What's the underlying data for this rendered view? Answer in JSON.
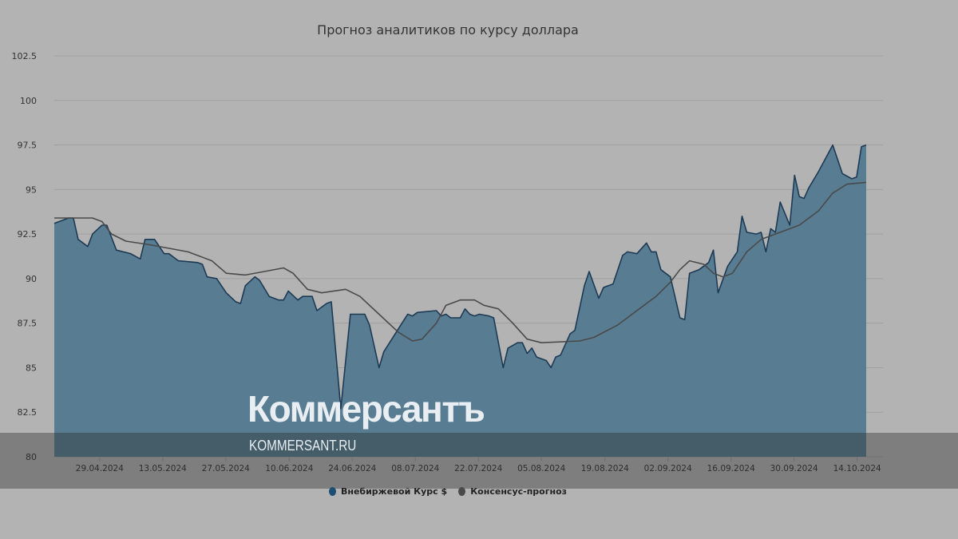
{
  "chart_data": {
    "type": "area",
    "title": "Прогноз аналитиков по курсу доллара",
    "xlabel": "",
    "ylabel": "",
    "ylim": [
      80,
      102.5
    ],
    "xlim": [
      0,
      170
    ],
    "y_ticks": [
      "80",
      "82.5",
      "85",
      "87.5",
      "90",
      "92.5",
      "95",
      "97.5",
      "100",
      "102.5"
    ],
    "x_ticks": [
      {
        "label": "29.04.2024",
        "day": 9.5
      },
      {
        "label": "13.05.2024",
        "day": 22.7
      },
      {
        "label": "27.05.2024",
        "day": 35.9
      },
      {
        "label": "10.06.2024",
        "day": 49.2
      },
      {
        "label": "24.06.2024",
        "day": 62.4
      },
      {
        "label": "08.07.2024",
        "day": 75.6
      },
      {
        "label": "22.07.2024",
        "day": 88.8
      },
      {
        "label": "05.08.2024",
        "day": 102.0
      },
      {
        "label": "19.08.2024",
        "day": 115.3
      },
      {
        "label": "02.09.2024",
        "day": 128.5
      },
      {
        "label": "16.09.2024",
        "day": 141.7
      },
      {
        "label": "30.09.2024",
        "day": 154.9
      },
      {
        "label": "14.10.2024",
        "day": 168.1
      }
    ],
    "grid": true,
    "legend_position": "bottom",
    "series": [
      {
        "name": "Внебиржевой Курс $",
        "color": "#1d3a55",
        "fill": "#587c92",
        "points": [
          [
            0,
            93.1
          ],
          [
            3,
            93.4
          ],
          [
            4,
            93.4
          ],
          [
            5,
            92.2
          ],
          [
            7,
            91.8
          ],
          [
            8,
            92.5
          ],
          [
            10,
            93.0
          ],
          [
            11,
            93.0
          ],
          [
            13,
            91.6
          ],
          [
            16,
            91.4
          ],
          [
            18,
            91.1
          ],
          [
            19,
            92.2
          ],
          [
            21,
            92.2
          ],
          [
            23,
            91.4
          ],
          [
            24,
            91.4
          ],
          [
            26,
            91.0
          ],
          [
            30,
            90.9
          ],
          [
            31,
            90.8
          ],
          [
            32,
            90.1
          ],
          [
            34,
            90.0
          ],
          [
            36,
            89.2
          ],
          [
            38,
            88.7
          ],
          [
            39,
            88.6
          ],
          [
            40,
            89.6
          ],
          [
            42,
            90.1
          ],
          [
            43,
            89.9
          ],
          [
            45,
            89.0
          ],
          [
            47,
            88.8
          ],
          [
            48,
            88.8
          ],
          [
            49,
            89.3
          ],
          [
            51,
            88.8
          ],
          [
            52,
            89.0
          ],
          [
            54,
            89.0
          ],
          [
            55,
            88.2
          ],
          [
            57,
            88.6
          ],
          [
            58,
            88.7
          ],
          [
            60,
            82.7
          ],
          [
            62,
            88.0
          ],
          [
            65,
            88.0
          ],
          [
            66,
            87.4
          ],
          [
            68,
            85.0
          ],
          [
            69,
            85.9
          ],
          [
            74,
            88.0
          ],
          [
            75,
            87.9
          ],
          [
            76,
            88.1
          ],
          [
            80,
            88.2
          ],
          [
            81,
            87.9
          ],
          [
            82,
            88.0
          ],
          [
            83,
            87.8
          ],
          [
            85,
            87.8
          ],
          [
            86,
            88.3
          ],
          [
            87,
            88.0
          ],
          [
            88,
            87.9
          ],
          [
            89,
            88.0
          ],
          [
            91,
            87.9
          ],
          [
            92,
            87.8
          ],
          [
            94,
            85.0
          ],
          [
            95,
            86.1
          ],
          [
            97,
            86.4
          ],
          [
            98,
            86.4
          ],
          [
            99,
            85.8
          ],
          [
            100,
            86.1
          ],
          [
            101,
            85.6
          ],
          [
            103,
            85.4
          ],
          [
            104,
            85.0
          ],
          [
            105,
            85.6
          ],
          [
            106,
            85.7
          ],
          [
            108,
            86.9
          ],
          [
            109,
            87.1
          ],
          [
            111,
            89.6
          ],
          [
            112,
            90.4
          ],
          [
            114,
            88.9
          ],
          [
            115,
            89.5
          ],
          [
            116,
            89.6
          ],
          [
            117,
            89.7
          ],
          [
            119,
            91.3
          ],
          [
            120,
            91.5
          ],
          [
            122,
            91.4
          ],
          [
            124,
            92.0
          ],
          [
            125,
            91.5
          ],
          [
            126,
            91.5
          ],
          [
            127,
            90.5
          ],
          [
            129,
            90.1
          ],
          [
            131,
            87.8
          ],
          [
            132,
            87.7
          ],
          [
            133,
            90.3
          ],
          [
            135,
            90.5
          ],
          [
            137,
            90.9
          ],
          [
            138,
            91.6
          ],
          [
            139,
            89.2
          ],
          [
            141,
            90.7
          ],
          [
            143,
            91.5
          ],
          [
            144,
            93.5
          ],
          [
            145,
            92.6
          ],
          [
            147,
            92.5
          ],
          [
            148,
            92.6
          ],
          [
            149,
            91.5
          ],
          [
            150,
            92.8
          ],
          [
            151,
            92.6
          ],
          [
            152,
            94.3
          ],
          [
            154,
            93.0
          ],
          [
            155,
            95.8
          ],
          [
            156,
            94.6
          ],
          [
            157,
            94.5
          ],
          [
            158,
            95.1
          ],
          [
            160,
            96.0
          ],
          [
            163,
            97.5
          ],
          [
            165,
            95.9
          ],
          [
            167,
            95.6
          ],
          [
            168,
            95.7
          ],
          [
            169,
            97.4
          ],
          [
            170,
            97.5
          ]
        ]
      },
      {
        "name": "Консенсус-прогноз",
        "color": "#4a4a4a",
        "points": [
          [
            0,
            93.4
          ],
          [
            8,
            93.4
          ],
          [
            10,
            93.2
          ],
          [
            12,
            92.5
          ],
          [
            15,
            92.1
          ],
          [
            20,
            91.9
          ],
          [
            28,
            91.5
          ],
          [
            33,
            91.0
          ],
          [
            36,
            90.3
          ],
          [
            40,
            90.2
          ],
          [
            44,
            90.4
          ],
          [
            48,
            90.6
          ],
          [
            50,
            90.3
          ],
          [
            53,
            89.4
          ],
          [
            56,
            89.2
          ],
          [
            61,
            89.4
          ],
          [
            64,
            89.0
          ],
          [
            68,
            88.0
          ],
          [
            72,
            87.0
          ],
          [
            75,
            86.5
          ],
          [
            77,
            86.6
          ],
          [
            80,
            87.5
          ],
          [
            82,
            88.5
          ],
          [
            85,
            88.8
          ],
          [
            88,
            88.8
          ],
          [
            90,
            88.5
          ],
          [
            93,
            88.3
          ],
          [
            96,
            87.5
          ],
          [
            99,
            86.6
          ],
          [
            102,
            86.4
          ],
          [
            110,
            86.5
          ],
          [
            113,
            86.7
          ],
          [
            118,
            87.4
          ],
          [
            122,
            88.2
          ],
          [
            126,
            89.0
          ],
          [
            129,
            89.8
          ],
          [
            131,
            90.5
          ],
          [
            133,
            91.0
          ],
          [
            136,
            90.8
          ],
          [
            138,
            90.3
          ],
          [
            140,
            90.1
          ],
          [
            142,
            90.3
          ],
          [
            145,
            91.5
          ],
          [
            148,
            92.2
          ],
          [
            152,
            92.6
          ],
          [
            156,
            93.0
          ],
          [
            160,
            93.8
          ],
          [
            163,
            94.8
          ],
          [
            166,
            95.3
          ],
          [
            170,
            95.4
          ]
        ]
      }
    ]
  },
  "watermark": {
    "logo": "Коммерсантъ",
    "url": "KOMMERSANT.RU"
  }
}
